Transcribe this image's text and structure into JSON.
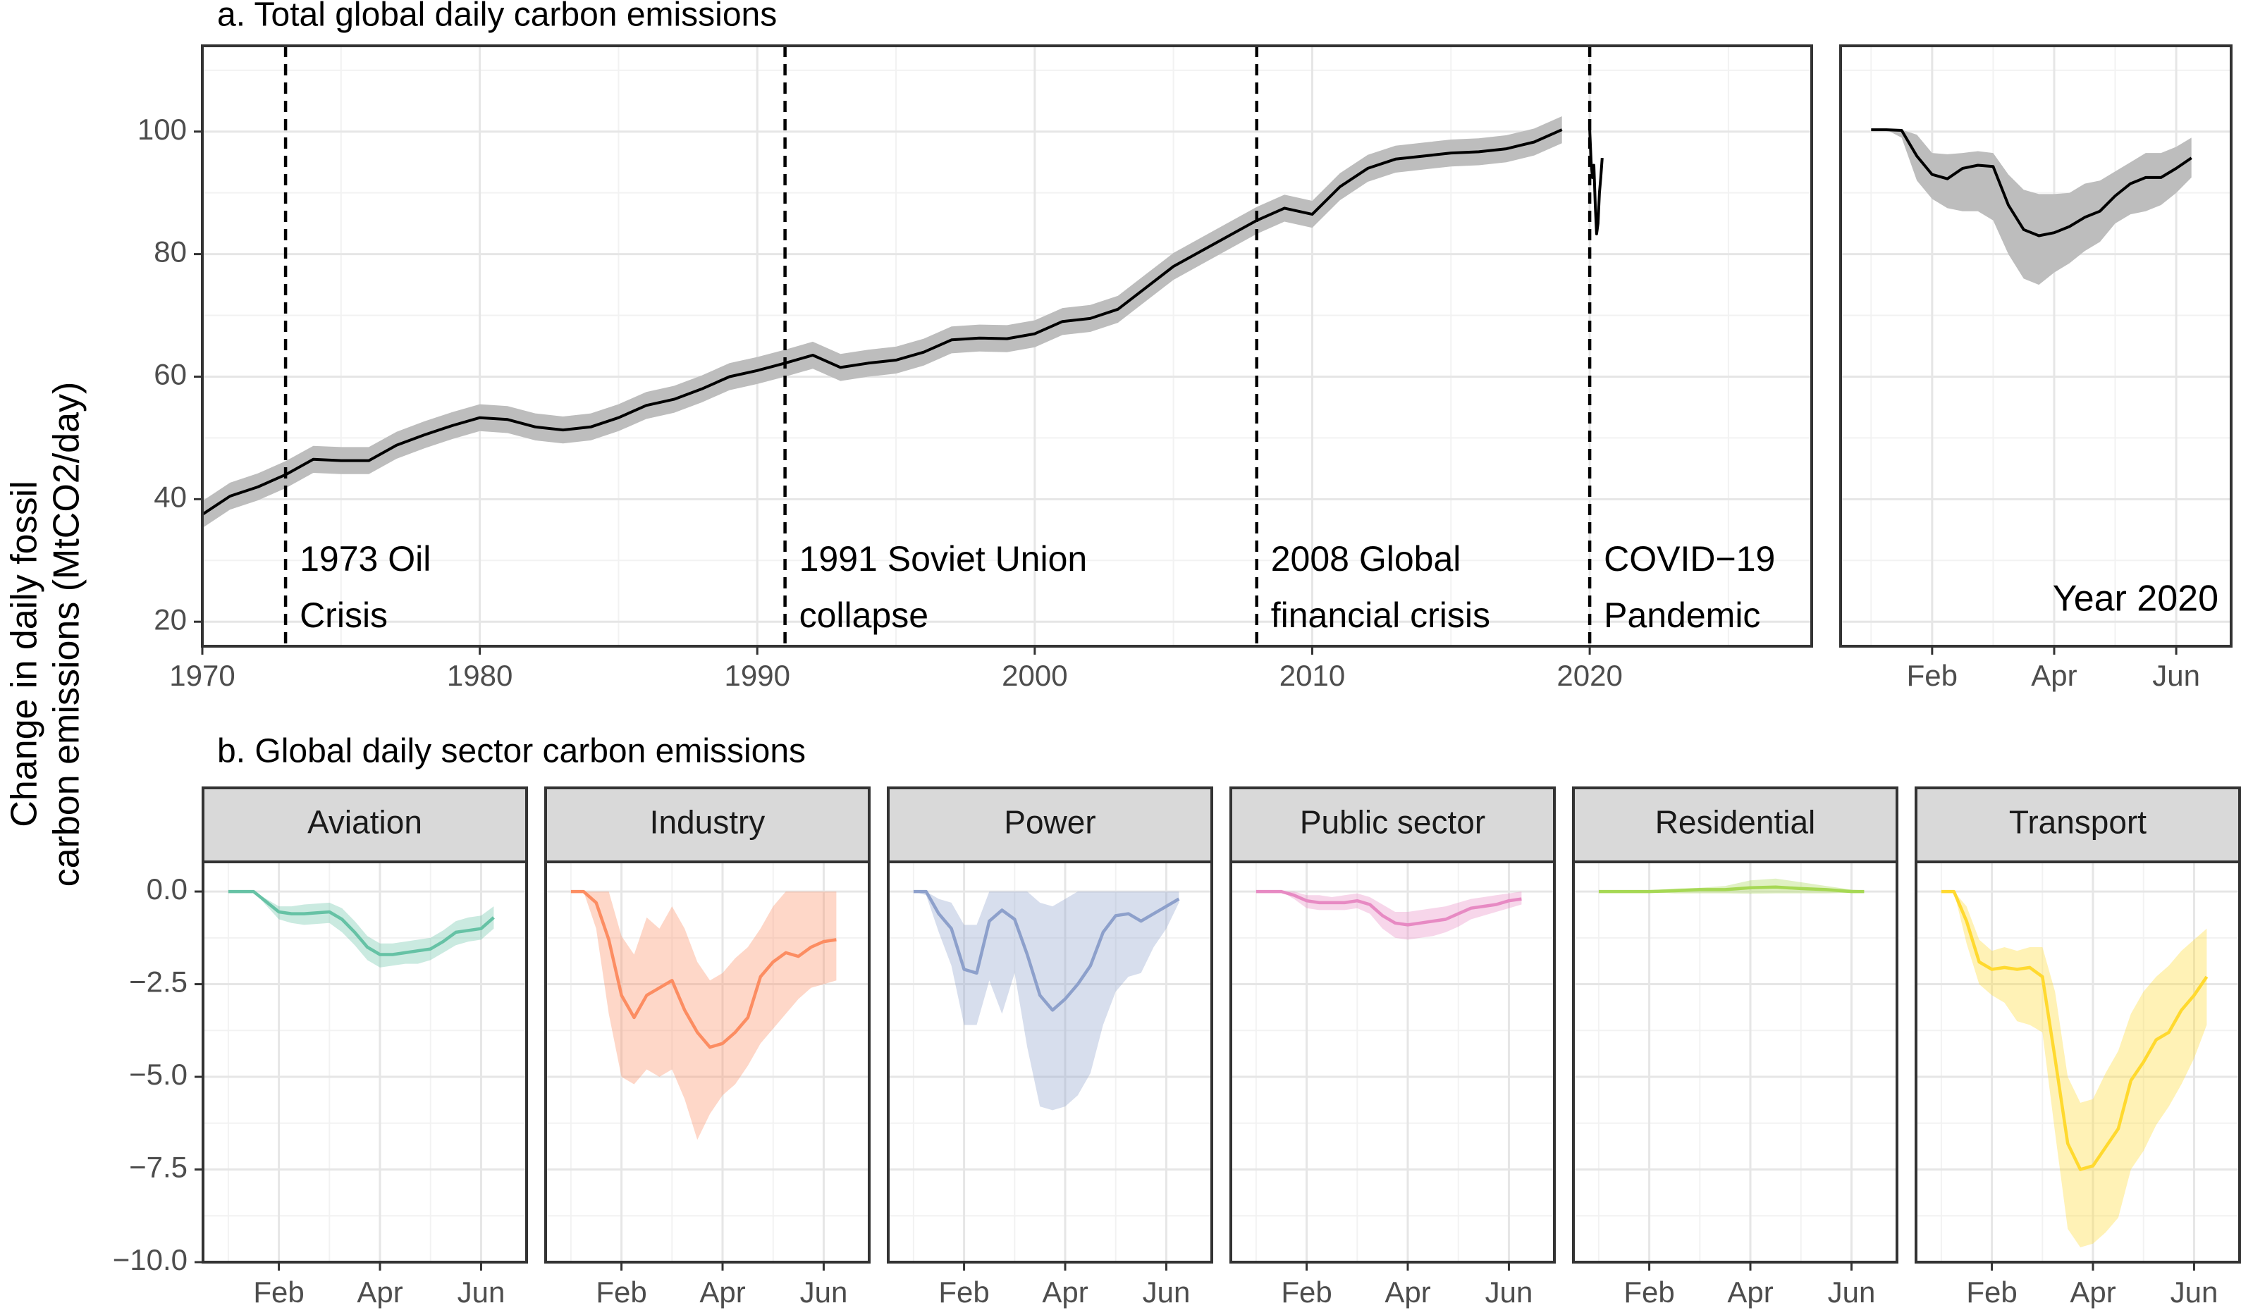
{
  "figure": {
    "ylabel_line1": "Change in daily fossil",
    "ylabel_line2": "carbon emissions (MtCO2/day)"
  },
  "chart_data": [
    {
      "type": "area",
      "title": "a. Total global daily carbon emissions",
      "xlim": [
        1970,
        2028
      ],
      "ylim": [
        16,
        114
      ],
      "x_ticks": [
        1970,
        1980,
        1990,
        2000,
        2010,
        2020
      ],
      "y_ticks": [
        20,
        40,
        60,
        80,
        100
      ],
      "series": [
        {
          "x": [
            1970,
            1971,
            1972,
            1973,
            1974,
            1975,
            1976,
            1977,
            1978,
            1979,
            1980,
            1981,
            1982,
            1983,
            1984,
            1985,
            1986,
            1987,
            1988,
            1989,
            1990,
            1991,
            1992,
            1993,
            1994,
            1995,
            1996,
            1997,
            1998,
            1999,
            2000,
            2001,
            2002,
            2003,
            2004,
            2005,
            2006,
            2007,
            2008,
            2009,
            2010,
            2011,
            2012,
            2013,
            2014,
            2015,
            2016,
            2017,
            2018,
            2019
          ],
          "values": [
            37.5,
            40.5,
            42,
            44,
            46.5,
            46.3,
            46.3,
            48.8,
            50.5,
            52,
            53.3,
            53,
            51.8,
            51.3,
            51.8,
            53.3,
            55.3,
            56.3,
            58,
            60,
            61,
            62.2,
            63.5,
            61.5,
            62.2,
            62.7,
            64,
            66,
            66.3,
            66.2,
            67,
            69,
            69.5,
            71,
            74.5,
            78,
            80.5,
            83,
            85.5,
            87.5,
            86.5,
            91,
            94,
            95.5,
            96,
            96.5,
            96.7,
            97.2,
            98.3,
            100.3
          ],
          "band_half_width": 2.2
        },
        {
          "x": [
            2020.0,
            2020.05,
            2020.1,
            2020.15,
            2020.2,
            2020.25,
            2020.3,
            2020.35,
            2020.4,
            2020.45
          ],
          "values": [
            100.3,
            95,
            92.5,
            94.5,
            88,
            83.3,
            85,
            90,
            92.5,
            95.7
          ]
        }
      ],
      "annotations": [
        {
          "x": 1973,
          "line1": "1973 Oil",
          "line2": "Crisis"
        },
        {
          "x": 1991,
          "line1": "1991 Soviet Union",
          "line2": "collapse"
        },
        {
          "x": 2008,
          "line1": "2008 Global",
          "line2": "financial crisis"
        },
        {
          "x": 2020,
          "line1": "COVID−19",
          "line2": "Pandemic"
        }
      ]
    },
    {
      "type": "area",
      "title": "Year 2020",
      "xlim": [
        -0.5,
        5.9
      ],
      "ylim": [
        16,
        114
      ],
      "x_ticks": [
        {
          "x": 1,
          "label": "Feb"
        },
        {
          "x": 3,
          "label": "Apr"
        },
        {
          "x": 5,
          "label": "Jun"
        }
      ],
      "y_ticks": [
        20,
        40,
        60,
        80,
        100
      ],
      "series": [
        {
          "x": [
            0,
            0.25,
            0.5,
            0.75,
            1,
            1.25,
            1.5,
            1.75,
            2,
            2.25,
            2.5,
            2.75,
            3,
            3.25,
            3.5,
            3.75,
            4,
            4.25,
            4.5,
            4.75,
            5,
            5.25
          ],
          "values": [
            100.3,
            100.3,
            100.2,
            96,
            93,
            92.3,
            94,
            94.5,
            94.3,
            88,
            84,
            83,
            83.5,
            84.5,
            86,
            87,
            89.5,
            91.5,
            92.5,
            92.5,
            94,
            95.7
          ],
          "lower": [
            100.3,
            100.3,
            99,
            92,
            89,
            87.5,
            87,
            87,
            85.5,
            80,
            76,
            75,
            77,
            78.5,
            80.5,
            82,
            85,
            86.5,
            87,
            88,
            90,
            92.5
          ],
          "upper": [
            100.3,
            100.3,
            100.3,
            99.5,
            96.5,
            96.3,
            96.5,
            96.8,
            96.5,
            93,
            90.5,
            89.8,
            89.8,
            90,
            91.5,
            92,
            93.5,
            95,
            96.5,
            96.5,
            97.5,
            99
          ]
        }
      ]
    },
    {
      "type": "area",
      "title": "b. Global daily sector carbon emissions",
      "xlim": [
        -0.5,
        5.9
      ],
      "ylim": [
        -10,
        0.8
      ],
      "x_ticks": [
        {
          "x": 1,
          "label": "Feb"
        },
        {
          "x": 3,
          "label": "Apr"
        },
        {
          "x": 5,
          "label": "Jun"
        }
      ],
      "y_ticks": [
        {
          "v": 0,
          "label": "0.0"
        },
        {
          "v": -2.5,
          "label": "−2.5"
        },
        {
          "v": -5,
          "label": "−5.0"
        },
        {
          "v": -7.5,
          "label": "−7.5"
        },
        {
          "v": -10,
          "label": "−10.0"
        }
      ],
      "series": [
        {
          "name": "Aviation",
          "color": "#66c2a5",
          "x": [
            0,
            0.5,
            1,
            1.25,
            1.5,
            2,
            2.25,
            2.5,
            2.75,
            3,
            3.25,
            3.5,
            3.75,
            4,
            4.25,
            4.5,
            4.75,
            5,
            5.25
          ],
          "values": [
            0,
            0,
            -0.55,
            -0.6,
            -0.6,
            -0.55,
            -0.75,
            -1.1,
            -1.5,
            -1.7,
            -1.7,
            -1.65,
            -1.6,
            -1.55,
            -1.35,
            -1.1,
            -1.05,
            -1.0,
            -0.7
          ],
          "lower": [
            0,
            0,
            -0.75,
            -0.85,
            -0.9,
            -0.85,
            -1.1,
            -1.45,
            -1.85,
            -2.05,
            -2.0,
            -1.95,
            -1.95,
            -1.85,
            -1.65,
            -1.45,
            -1.35,
            -1.3,
            -1.0
          ],
          "upper": [
            0,
            0,
            -0.4,
            -0.4,
            -0.35,
            -0.3,
            -0.45,
            -0.8,
            -1.2,
            -1.4,
            -1.4,
            -1.35,
            -1.3,
            -1.25,
            -1.05,
            -0.8,
            -0.7,
            -0.65,
            -0.4
          ]
        },
        {
          "name": "Industry",
          "color": "#fc8d62",
          "x": [
            0,
            0.25,
            0.5,
            0.75,
            1,
            1.25,
            1.5,
            1.75,
            2,
            2.25,
            2.5,
            2.75,
            3,
            3.25,
            3.5,
            3.75,
            4,
            4.25,
            4.5,
            4.75,
            5,
            5.25
          ],
          "values": [
            0,
            0,
            -0.3,
            -1.3,
            -2.8,
            -3.4,
            -2.8,
            -2.6,
            -2.4,
            -3.2,
            -3.8,
            -4.2,
            -4.1,
            -3.8,
            -3.4,
            -2.3,
            -1.9,
            -1.65,
            -1.75,
            -1.5,
            -1.35,
            -1.3
          ],
          "lower": [
            0,
            0,
            -1.0,
            -3.3,
            -5.0,
            -5.2,
            -4.8,
            -5.0,
            -4.8,
            -5.6,
            -6.7,
            -6.0,
            -5.5,
            -5.2,
            -4.7,
            -4.1,
            -3.7,
            -3.3,
            -2.9,
            -2.6,
            -2.5,
            -2.4
          ],
          "upper": [
            0,
            0,
            0,
            0,
            -1.2,
            -1.7,
            -0.7,
            -1.0,
            -0.4,
            -1.0,
            -1.9,
            -2.4,
            -2.2,
            -1.8,
            -1.5,
            -1.0,
            -0.4,
            0,
            0,
            0,
            0,
            0
          ]
        },
        {
          "name": "Power",
          "color": "#8da0cb",
          "x": [
            0,
            0.25,
            0.5,
            0.75,
            1,
            1.25,
            1.5,
            1.75,
            2,
            2.25,
            2.5,
            2.75,
            3,
            3.25,
            3.5,
            3.75,
            4,
            4.25,
            4.5,
            4.75,
            5,
            5.25
          ],
          "values": [
            0,
            0,
            -0.6,
            -1.0,
            -2.1,
            -2.2,
            -0.8,
            -0.5,
            -0.75,
            -1.7,
            -2.8,
            -3.2,
            -2.9,
            -2.5,
            -2.0,
            -1.1,
            -0.65,
            -0.6,
            -0.8,
            -0.6,
            -0.4,
            -0.2
          ],
          "lower": [
            0,
            -0.1,
            -1.1,
            -2.0,
            -3.6,
            -3.6,
            -2.4,
            -3.3,
            -2.2,
            -4.2,
            -5.8,
            -5.9,
            -5.8,
            -5.5,
            -4.9,
            -3.6,
            -2.7,
            -2.3,
            -2.2,
            -1.5,
            -1.0,
            -0.3
          ],
          "upper": [
            0,
            0,
            -0.2,
            -0.3,
            -0.9,
            -0.9,
            0,
            0,
            0,
            0,
            -0.3,
            -0.4,
            -0.2,
            0,
            0,
            0,
            0,
            0,
            0,
            0,
            0,
            0
          ]
        },
        {
          "name": "Public sector",
          "color": "#e78ac3",
          "x": [
            0,
            0.5,
            0.75,
            1,
            1.25,
            1.5,
            1.75,
            2,
            2.25,
            2.5,
            2.75,
            3,
            3.25,
            3.5,
            3.75,
            4,
            4.25,
            4.5,
            4.75,
            5,
            5.25
          ],
          "values": [
            0,
            0,
            -0.1,
            -0.25,
            -0.3,
            -0.3,
            -0.3,
            -0.25,
            -0.35,
            -0.65,
            -0.85,
            -0.9,
            -0.85,
            -0.8,
            -0.75,
            -0.6,
            -0.45,
            -0.4,
            -0.35,
            -0.25,
            -0.2
          ],
          "lower": [
            0,
            0,
            -0.2,
            -0.45,
            -0.5,
            -0.5,
            -0.5,
            -0.45,
            -0.6,
            -1.0,
            -1.25,
            -1.3,
            -1.25,
            -1.2,
            -1.1,
            -0.95,
            -0.75,
            -0.65,
            -0.55,
            -0.45,
            -0.35
          ],
          "upper": [
            0,
            0,
            0,
            -0.1,
            -0.1,
            -0.15,
            -0.1,
            -0.05,
            -0.15,
            -0.35,
            -0.55,
            -0.55,
            -0.5,
            -0.45,
            -0.4,
            -0.3,
            -0.2,
            -0.15,
            -0.1,
            -0.05,
            0
          ]
        },
        {
          "name": "Residential",
          "color": "#a6d854",
          "x": [
            0,
            0.5,
            1,
            1.5,
            2,
            2.5,
            3,
            3.5,
            4,
            4.5,
            5,
            5.25
          ],
          "values": [
            0,
            0,
            0,
            0.02,
            0.05,
            0.05,
            0.1,
            0.12,
            0.08,
            0.05,
            0,
            0
          ],
          "lower": [
            0,
            0,
            -0.02,
            -0.05,
            -0.05,
            -0.05,
            -0.06,
            -0.05,
            -0.05,
            -0.05,
            -0.03,
            -0.03
          ],
          "upper": [
            0,
            0,
            0.03,
            0.08,
            0.1,
            0.15,
            0.3,
            0.35,
            0.25,
            0.15,
            0.05,
            0.03
          ]
        },
        {
          "name": "Transport",
          "color": "#ffd92f",
          "x": [
            0,
            0.25,
            0.5,
            0.75,
            1,
            1.25,
            1.5,
            1.75,
            2,
            2.25,
            2.5,
            2.75,
            3,
            3.25,
            3.5,
            3.75,
            4,
            4.25,
            4.5,
            4.75,
            5,
            5.25
          ],
          "values": [
            0,
            0,
            -0.8,
            -1.9,
            -2.1,
            -2.05,
            -2.1,
            -2.05,
            -2.3,
            -4.5,
            -6.8,
            -7.5,
            -7.4,
            -6.9,
            -6.4,
            -5.1,
            -4.6,
            -4.0,
            -3.8,
            -3.2,
            -2.8,
            -2.3
          ],
          "lower": [
            0,
            0,
            -1.4,
            -2.5,
            -2.8,
            -3.0,
            -3.5,
            -3.6,
            -3.8,
            -6.5,
            -9.1,
            -9.6,
            -9.5,
            -9.2,
            -8.8,
            -7.5,
            -7.0,
            -6.3,
            -5.8,
            -5.2,
            -4.5,
            -3.6
          ],
          "upper": [
            0,
            0,
            -0.4,
            -1.3,
            -1.6,
            -1.5,
            -1.6,
            -1.5,
            -1.5,
            -2.7,
            -5.0,
            -5.7,
            -5.6,
            -4.9,
            -4.3,
            -3.3,
            -2.7,
            -2.3,
            -2.0,
            -1.6,
            -1.3,
            -1.0
          ]
        }
      ]
    }
  ]
}
